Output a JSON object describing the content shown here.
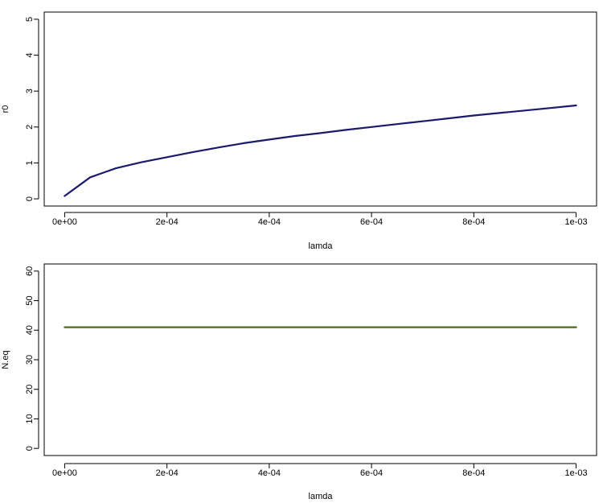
{
  "chart_data": [
    {
      "type": "line",
      "xlabel": "lamda",
      "ylabel": "r0",
      "xlim": [
        0,
        0.001
      ],
      "ylim": [
        0,
        5
      ],
      "x_ticks": [
        0,
        0.0002,
        0.0004,
        0.0006,
        0.0008,
        0.001
      ],
      "x_tick_labels": [
        "0e+00",
        "2e-04",
        "4e-04",
        "6e-04",
        "8e-04",
        "1e-03"
      ],
      "y_ticks": [
        0,
        1,
        2,
        3,
        4,
        5
      ],
      "y_tick_labels": [
        "0",
        "1",
        "2",
        "3",
        "4",
        "5"
      ],
      "grid": false,
      "legend": "none",
      "series": [
        {
          "color": "#1a1a6e",
          "x": [
            0,
            5e-05,
            0.0001,
            0.00015,
            0.0002,
            0.00025,
            0.0003,
            0.00035,
            0.0004,
            0.00045,
            0.0005,
            0.00055,
            0.0006,
            0.00065,
            0.0007,
            0.00075,
            0.0008,
            0.00085,
            0.0009,
            0.00095,
            0.001
          ],
          "y": [
            0.08,
            0.6,
            0.85,
            1.02,
            1.16,
            1.3,
            1.43,
            1.55,
            1.65,
            1.75,
            1.83,
            1.92,
            2.0,
            2.08,
            2.16,
            2.24,
            2.32,
            2.39,
            2.46,
            2.53,
            2.6
          ]
        }
      ]
    },
    {
      "type": "line",
      "xlabel": "lamda",
      "ylabel": "N.eq",
      "xlim": [
        0,
        0.001
      ],
      "ylim": [
        0,
        60
      ],
      "x_ticks": [
        0,
        0.0002,
        0.0004,
        0.0006,
        0.0008,
        0.001
      ],
      "x_tick_labels": [
        "0e+00",
        "2e-04",
        "4e-04",
        "6e-04",
        "8e-04",
        "1e-03"
      ],
      "y_ticks": [
        0,
        10,
        20,
        30,
        40,
        50,
        60
      ],
      "y_tick_labels": [
        "0",
        "10",
        "20",
        "30",
        "40",
        "50",
        "60"
      ],
      "grid": false,
      "legend": "none",
      "series": [
        {
          "color": "#4a6b1a",
          "x": [
            0,
            0.001
          ],
          "y": [
            41,
            41
          ]
        }
      ]
    }
  ]
}
